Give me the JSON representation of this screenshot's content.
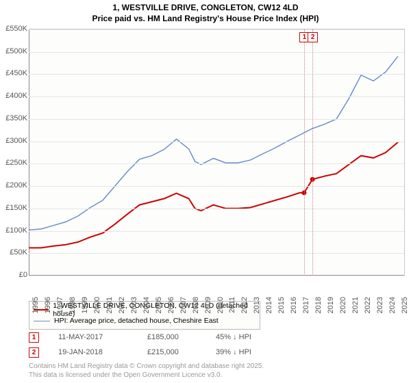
{
  "title_line1": "1, WESTVILLE DRIVE, CONGLETON, CW12 4LD",
  "title_line2": "Price paid vs. HM Land Registry's House Price Index (HPI)",
  "chart": {
    "type": "line",
    "background_color": "#fdfdfc",
    "grid_color": "#e5e5e5",
    "axis_color": "#888888",
    "x_years": [
      1995,
      1996,
      1997,
      1998,
      1999,
      2000,
      2001,
      2002,
      2003,
      2004,
      2005,
      2006,
      2007,
      2008,
      2009,
      2010,
      2011,
      2012,
      2013,
      2014,
      2015,
      2016,
      2017,
      2018,
      2019,
      2020,
      2021,
      2022,
      2023,
      2024,
      2025
    ],
    "xlim": [
      1995,
      2025.5
    ],
    "y_ticks": [
      0,
      50,
      100,
      150,
      200,
      250,
      300,
      350,
      400,
      450,
      500,
      550
    ],
    "y_tick_labels": [
      "£0",
      "£50K",
      "£100K",
      "£150K",
      "£200K",
      "£250K",
      "£300K",
      "£350K",
      "£400K",
      "£450K",
      "£500K",
      "£550K"
    ],
    "ylim": [
      0,
      550
    ],
    "series": [
      {
        "name": "property",
        "color": "#cc0000",
        "width": 2,
        "points": [
          [
            1995,
            62
          ],
          [
            1996,
            62
          ],
          [
            1997,
            66
          ],
          [
            1998,
            69
          ],
          [
            1999,
            75
          ],
          [
            2000,
            86
          ],
          [
            2001,
            95
          ],
          [
            2002,
            115
          ],
          [
            2003,
            137
          ],
          [
            2004,
            158
          ],
          [
            2005,
            165
          ],
          [
            2006,
            172
          ],
          [
            2007,
            184
          ],
          [
            2008,
            172
          ],
          [
            2008.5,
            150
          ],
          [
            2009,
            145
          ],
          [
            2010,
            158
          ],
          [
            2011,
            150
          ],
          [
            2012,
            150
          ],
          [
            2013,
            152
          ],
          [
            2014,
            160
          ],
          [
            2015,
            168
          ],
          [
            2016,
            176
          ],
          [
            2017,
            185
          ],
          [
            2017.37,
            185
          ],
          [
            2018.05,
            215
          ],
          [
            2019,
            222
          ],
          [
            2020,
            228
          ],
          [
            2021,
            248
          ],
          [
            2022,
            268
          ],
          [
            2023,
            263
          ],
          [
            2024,
            275
          ],
          [
            2025,
            298
          ]
        ]
      },
      {
        "name": "hpi",
        "color": "#6b8fc7",
        "width": 1.5,
        "points": [
          [
            1995,
            102
          ],
          [
            1996,
            104
          ],
          [
            1997,
            112
          ],
          [
            1998,
            120
          ],
          [
            1999,
            133
          ],
          [
            2000,
            152
          ],
          [
            2001,
            168
          ],
          [
            2002,
            200
          ],
          [
            2003,
            232
          ],
          [
            2004,
            260
          ],
          [
            2005,
            268
          ],
          [
            2006,
            282
          ],
          [
            2007,
            305
          ],
          [
            2008,
            283
          ],
          [
            2008.5,
            255
          ],
          [
            2009,
            248
          ],
          [
            2010,
            262
          ],
          [
            2011,
            252
          ],
          [
            2012,
            252
          ],
          [
            2013,
            258
          ],
          [
            2014,
            272
          ],
          [
            2015,
            285
          ],
          [
            2016,
            300
          ],
          [
            2017,
            314
          ],
          [
            2018,
            328
          ],
          [
            2019,
            338
          ],
          [
            2020,
            350
          ],
          [
            2021,
            395
          ],
          [
            2022,
            448
          ],
          [
            2023,
            435
          ],
          [
            2024,
            455
          ],
          [
            2025,
            490
          ]
        ]
      }
    ],
    "transaction_markers": [
      {
        "n": "1",
        "year": 2017.37,
        "color": "#cc0000"
      },
      {
        "n": "2",
        "year": 2018.05,
        "color": "#cc0000"
      }
    ]
  },
  "legend": {
    "items": [
      {
        "color": "#cc0000",
        "width": 2,
        "label": "1, WESTVILLE DRIVE, CONGLETON, CW12 4LD (detached house)"
      },
      {
        "color": "#6b8fc7",
        "width": 1.5,
        "label": "HPI: Average price, detached house, Cheshire East"
      }
    ]
  },
  "transactions": [
    {
      "n": "1",
      "date": "11-MAY-2017",
      "price": "£185,000",
      "pct": "45% ↓ HPI",
      "color": "#cc0000"
    },
    {
      "n": "2",
      "date": "19-JAN-2018",
      "price": "£215,000",
      "pct": "39% ↓ HPI",
      "color": "#cc0000"
    }
  ],
  "footnote_line1": "Contains HM Land Registry data © Crown copyright and database right 2025.",
  "footnote_line2": "This data is licensed under the Open Government Licence v3.0."
}
